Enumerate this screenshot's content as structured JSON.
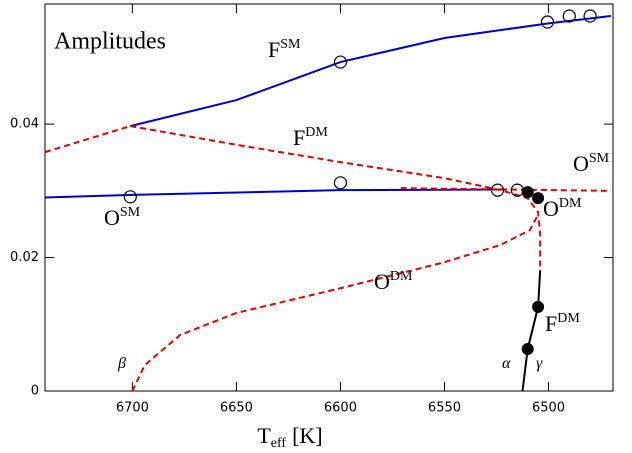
{
  "chart_data": {
    "type": "line",
    "title": "Amplitudes",
    "x_label": {
      "main": "T",
      "sub": "eff",
      "unit": "[K]"
    },
    "xlim": [
      6742,
      6469
    ],
    "ylim": [
      0,
      0.058
    ],
    "xticks": [
      6700,
      6650,
      6600,
      6550,
      6500
    ],
    "yticks": [
      0,
      0.02,
      0.04
    ],
    "lines": [
      {
        "color": "#e00000",
        "dashed": true,
        "x": [
          6742,
          6701
        ],
        "y": [
          0.0358,
          0.0397
        ]
      },
      {
        "color": "#0000cc",
        "dashed": false,
        "x": [
          6701,
          6650,
          6600,
          6550,
          6500,
          6470
        ],
        "y": [
          0.0397,
          0.0436,
          0.0493,
          0.0529,
          0.0551,
          0.0562
        ]
      },
      {
        "color": "#0000cc",
        "dashed": false,
        "x": [
          6742,
          6700,
          6600,
          6520
        ],
        "y": [
          0.029,
          0.0294,
          0.0301,
          0.0302
        ]
      },
      {
        "color": "#e00000",
        "dashed": true,
        "x": [
          6701,
          6650,
          6600,
          6550,
          6523,
          6510,
          6505,
          6504,
          6504
        ],
        "y": [
          0.0397,
          0.0369,
          0.0343,
          0.0319,
          0.0301,
          0.0289,
          0.0268,
          0.0234,
          0.0181
        ]
      },
      {
        "color": "#e00000",
        "dashed": true,
        "x": [
          6700,
          6694,
          6677,
          6650,
          6600,
          6550,
          6523,
          6509,
          6505
        ],
        "y": [
          0,
          0.0039,
          0.0084,
          0.0117,
          0.0154,
          0.0193,
          0.0219,
          0.0241,
          0.0264
        ]
      },
      {
        "color": "#e00000",
        "dashed": true,
        "x": [
          6571,
          6470
        ],
        "y": [
          0.0304,
          0.03
        ]
      },
      {
        "color": "#000000",
        "dashed": false,
        "x": [
          6504,
          6505,
          6510,
          6512.5
        ],
        "y": [
          0.0181,
          0.0126,
          0.0063,
          0
        ]
      }
    ],
    "open_points": {
      "x": [
        6701,
        6600,
        6600,
        6524.5,
        6515,
        6500.5,
        6490,
        6480
      ],
      "y": [
        0.0291,
        0.0493,
        0.0312,
        0.0301,
        0.0301,
        0.0553,
        0.0562,
        0.0562
      ]
    },
    "filled_points": {
      "x": [
        6510,
        6505,
        6505,
        6510
      ],
      "y": [
        0.0298,
        0.0289,
        0.0126,
        0.0063
      ]
    },
    "annotations": [
      {
        "text": "F",
        "sup": "SM"
      },
      {
        "text": "F",
        "sup": "DM"
      },
      {
        "text": "O",
        "sup": "SM"
      },
      {
        "text": "O",
        "sup": "SM"
      },
      {
        "text": "O",
        "sup": "DM"
      },
      {
        "text": "O",
        "sup": "DM"
      },
      {
        "text": "F",
        "sup": "DM"
      },
      {
        "text": "β"
      },
      {
        "text": "α"
      },
      {
        "text": "γ"
      }
    ]
  }
}
